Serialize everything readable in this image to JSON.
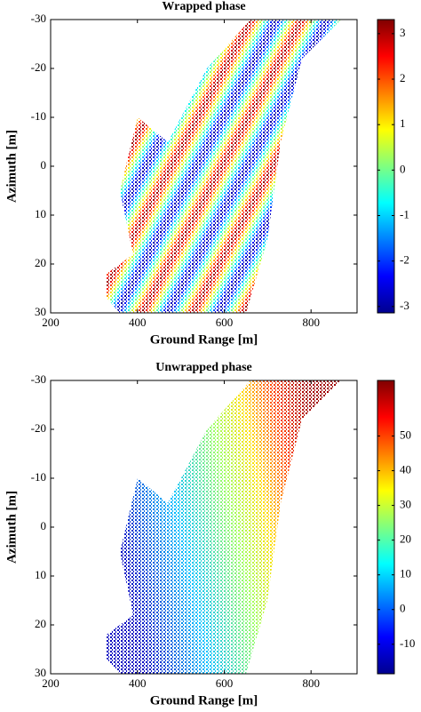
{
  "chart_data": [
    {
      "type": "image",
      "title": "Wrapped phase",
      "x_label": "Ground Range [m]",
      "y_label": "Azimuth [m]",
      "xlim": [
        200,
        906
      ],
      "xticks": [
        200,
        400,
        600,
        800
      ],
      "ylim": [
        -30,
        30
      ],
      "yticks": [
        -30,
        -20,
        -10,
        0,
        10,
        20,
        30
      ],
      "y_reversed": true,
      "colormap": "jet",
      "clim": [
        -3.14,
        3.31
      ],
      "cticks": [
        -3,
        -2,
        -1,
        0,
        1,
        2,
        3
      ]
    },
    {
      "type": "image",
      "title": "Unwrapped phase",
      "x_label": "Ground Range [m]",
      "y_label": "Azimuth [m]",
      "xlim": [
        200,
        906
      ],
      "xticks": [
        200,
        400,
        600,
        800
      ],
      "ylim": [
        -30,
        30
      ],
      "yticks": [
        -30,
        -20,
        -10,
        0,
        10,
        20,
        30
      ],
      "y_reversed": true,
      "colormap": "jet",
      "clim": [
        -18.5,
        66
      ],
      "cticks": [
        -10,
        0,
        10,
        20,
        30,
        40,
        50
      ]
    }
  ]
}
